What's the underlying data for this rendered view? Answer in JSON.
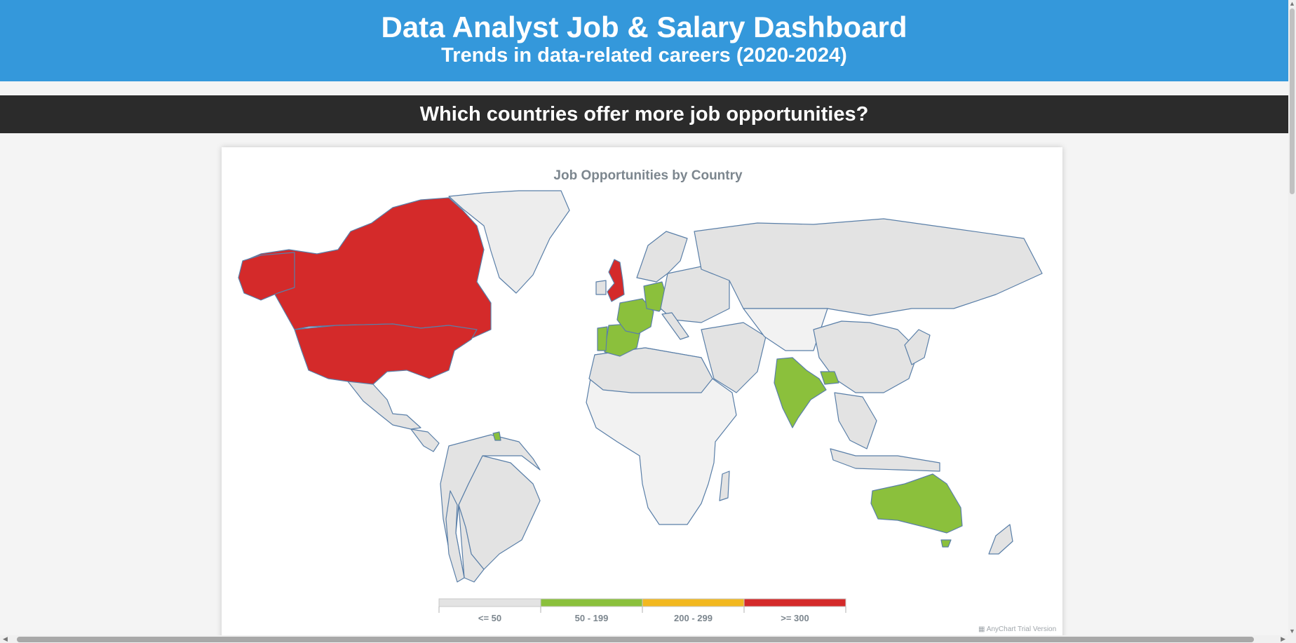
{
  "header": {
    "title": "Data Analyst Job & Salary Dashboard",
    "subtitle": "Trends in data-related careers (2020-2024)"
  },
  "section": {
    "question": "Which countries offer more job opportunities?"
  },
  "chart_data": {
    "type": "choropleth-map",
    "title": "Job Opportunities by Country",
    "color_ranges": [
      {
        "label": "<= 50",
        "color": "#e3e3e3"
      },
      {
        "label": "50 - 199",
        "color": "#8bc03c"
      },
      {
        "label": "200 - 299",
        "color": "#f2b81f"
      },
      {
        "label": ">= 300",
        "color": "#d42a2a"
      }
    ],
    "countries_by_range": {
      ">= 300": [
        "United States",
        "Canada",
        "United Kingdom"
      ],
      "50 - 199": [
        "Australia",
        "India",
        "Germany",
        "France",
        "Spain",
        "Portugal",
        "Nepal",
        "French Guiana"
      ],
      "200 - 299": []
    },
    "credits": "AnyChart Trial Version"
  },
  "colors": {
    "header_bg": "#3498db",
    "section_bg": "#2b2b2b",
    "border": "#5a7fa8",
    "no_data": "#f2f2f2"
  }
}
